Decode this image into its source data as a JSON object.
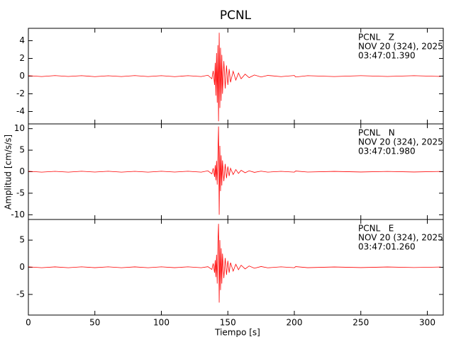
{
  "chart_data": [
    {
      "type": "line",
      "title": "PCNL",
      "annotations": [
        "PCNL   Z",
        "NOV 20 (324), 2025",
        "03:47:01.390"
      ],
      "x": [
        0,
        10,
        20,
        30,
        40,
        50,
        60,
        70,
        80,
        90,
        100,
        110,
        120,
        130,
        135,
        138,
        139,
        140,
        140.5,
        141,
        141.5,
        142,
        142.5,
        143,
        143.5,
        144,
        144.5,
        145,
        145.5,
        146,
        147,
        148,
        149,
        150,
        151,
        152,
        154,
        156,
        158,
        160,
        163,
        166,
        170,
        175,
        180,
        190,
        200,
        201,
        210,
        230,
        250,
        270,
        290,
        310
      ],
      "values": [
        0.05,
        -0.05,
        0.06,
        -0.04,
        0.05,
        -0.06,
        0.04,
        -0.05,
        0.06,
        -0.05,
        0.05,
        -0.06,
        0.05,
        -0.05,
        0.1,
        -0.3,
        0.6,
        -1.0,
        1.5,
        -2.2,
        2.6,
        -3.0,
        3.5,
        -5.1,
        4.9,
        -3.6,
        3.2,
        -2.8,
        2.4,
        -2.0,
        1.7,
        -1.4,
        1.2,
        -1.0,
        0.8,
        -0.7,
        0.55,
        -0.45,
        0.35,
        -0.3,
        0.22,
        -0.17,
        0.13,
        -0.1,
        0.08,
        -0.06,
        0.07,
        -0.1,
        0.05,
        -0.05,
        0.05,
        -0.04,
        0.05,
        -0.04
      ],
      "color": "#ff0000",
      "xlim": [
        0,
        312
      ],
      "ylim": [
        -5.4,
        5.4
      ],
      "yticks": [
        -4,
        -2,
        0,
        2,
        4
      ]
    },
    {
      "type": "line",
      "ylabel": "Amplitud [cm/s/s]",
      "annotations": [
        "PCNL   N",
        "NOV 20 (324), 2025",
        "03:47:01.980"
      ],
      "x": [
        0,
        10,
        20,
        30,
        40,
        50,
        60,
        70,
        80,
        90,
        100,
        110,
        120,
        130,
        135,
        138,
        139,
        140,
        140.5,
        141,
        141.5,
        142,
        142.5,
        143,
        143.5,
        144,
        144.5,
        145,
        145.5,
        146,
        147,
        148,
        149,
        150,
        151,
        152,
        154,
        156,
        158,
        160,
        163,
        166,
        170,
        175,
        180,
        190,
        200,
        201,
        210,
        230,
        250,
        270,
        290,
        310
      ],
      "values": [
        0.1,
        -0.1,
        0.08,
        -0.1,
        0.1,
        -0.08,
        0.1,
        -0.1,
        0.08,
        -0.1,
        0.1,
        -0.08,
        0.1,
        -0.1,
        0.2,
        -0.5,
        0.8,
        -1.2,
        1.5,
        -2.0,
        2.5,
        -3.0,
        4.0,
        10.5,
        -10.0,
        6.0,
        -4.5,
        3.8,
        -3.2,
        2.6,
        -2.2,
        1.8,
        -1.5,
        1.2,
        -1.0,
        0.8,
        -0.65,
        0.5,
        -0.4,
        0.32,
        -0.25,
        0.2,
        -0.15,
        0.12,
        -0.1,
        0.08,
        -0.1,
        0.15,
        -0.08,
        0.07,
        -0.07,
        0.06,
        -0.07,
        0.06
      ],
      "color": "#ff0000",
      "xlim": [
        0,
        312
      ],
      "ylim": [
        -11.1,
        11.1
      ],
      "yticks": [
        -10,
        -5,
        0,
        5,
        10
      ]
    },
    {
      "type": "line",
      "xlabel": "Tiempo [s]",
      "annotations": [
        "PCNL   E",
        "NOV 20 (324), 2025",
        "03:47:01.260"
      ],
      "x": [
        0,
        10,
        20,
        30,
        40,
        50,
        60,
        70,
        80,
        90,
        100,
        110,
        120,
        130,
        135,
        138,
        139,
        140,
        140.5,
        141,
        141.5,
        142,
        142.5,
        143,
        143.5,
        144,
        144.5,
        145,
        145.5,
        146,
        147,
        148,
        149,
        150,
        151,
        152,
        154,
        156,
        158,
        160,
        163,
        166,
        170,
        175,
        180,
        190,
        200,
        201,
        210,
        230,
        250,
        270,
        290,
        310
      ],
      "values": [
        0.08,
        -0.08,
        0.07,
        -0.08,
        0.08,
        -0.07,
        0.08,
        -0.08,
        0.07,
        -0.08,
        0.08,
        -0.07,
        0.08,
        -0.08,
        0.1,
        -0.4,
        0.7,
        -1.0,
        1.3,
        -1.8,
        2.3,
        -3.0,
        4.5,
        8.0,
        -6.5,
        5.0,
        -4.2,
        3.5,
        -3.0,
        2.5,
        -2.0,
        1.7,
        -1.4,
        1.2,
        -1.0,
        0.85,
        -0.7,
        0.55,
        -0.45,
        0.38,
        -0.3,
        0.24,
        -0.18,
        0.14,
        -0.1,
        0.08,
        -0.08,
        0.12,
        -0.07,
        0.06,
        -0.06,
        0.06,
        -0.05,
        0.05
      ],
      "color": "#ff0000",
      "xlim": [
        0,
        312
      ],
      "ylim": [
        -8.8,
        8.8
      ],
      "yticks": [
        -5,
        0,
        5
      ],
      "xticks": [
        0,
        50,
        100,
        150,
        200,
        250,
        300
      ]
    }
  ]
}
